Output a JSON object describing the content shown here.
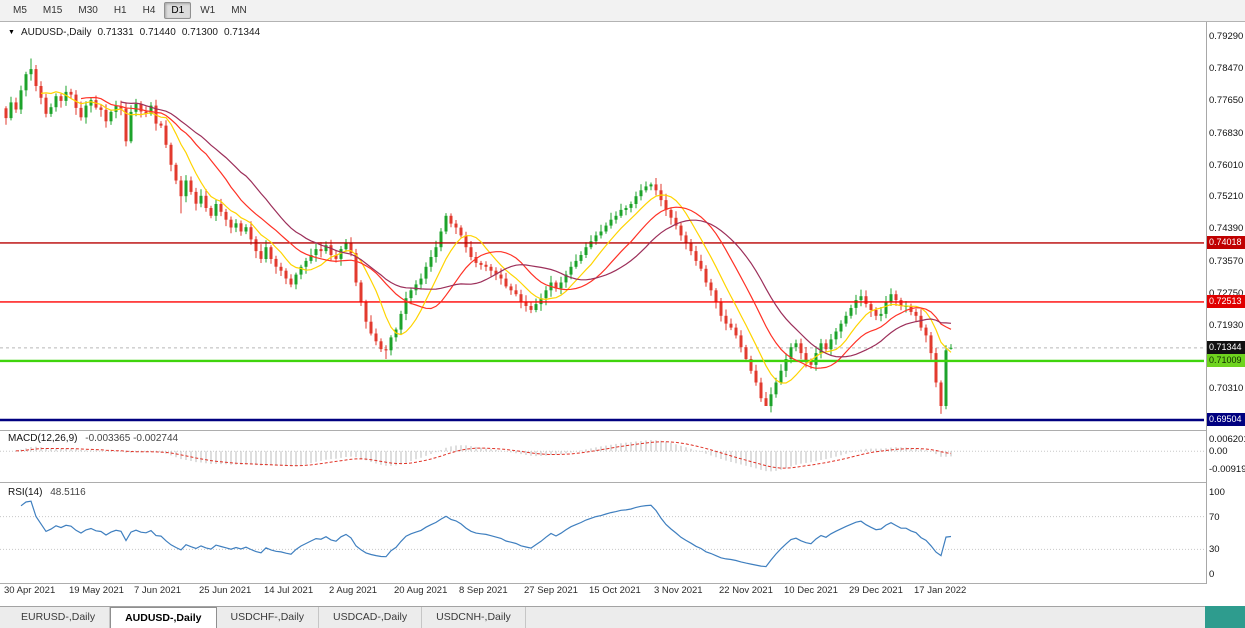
{
  "toolbar": {
    "timeframes": [
      "M5",
      "M15",
      "M30",
      "H1",
      "H4",
      "D1",
      "W1",
      "MN"
    ],
    "active": "D1"
  },
  "chart_header": {
    "marker": "▼",
    "symbol": "AUDUSD-,Daily",
    "open": "0.71331",
    "high": "0.71440",
    "low": "0.71300",
    "close": "0.71344"
  },
  "price_axis_labels": [
    "0.79290",
    "0.78470",
    "0.77650",
    "0.76830",
    "0.76010",
    "0.75210",
    "0.74390",
    "0.73570",
    "0.72750",
    "0.71930",
    "0.70310",
    "0.69490"
  ],
  "indicators": {
    "macd": {
      "name": "MACD(12,26,9)",
      "values": "-0.003365 -0.002744",
      "axis": [
        "0.006201",
        "0.00",
        "-0.009197"
      ]
    },
    "rsi": {
      "name": "RSI(14)",
      "value": "48.5116",
      "axis": [
        "100",
        "70",
        "30",
        "0"
      ],
      "levels": [
        70,
        30
      ]
    }
  },
  "date_axis": [
    "30 Apr 2021",
    "19 May 2021",
    "7 Jun 2021",
    "25 Jun 2021",
    "14 Jul 2021",
    "2 Aug 2021",
    "20 Aug 2021",
    "8 Sep 2021",
    "27 Sep 2021",
    "15 Oct 2021",
    "3 Nov 2021",
    "22 Nov 2021",
    "10 Dec 2021",
    "29 Dec 2021",
    "17 Jan 2022"
  ],
  "tabs": [
    "EURUSD-,Daily",
    "AUDUSD-,Daily",
    "USDCHF-,Daily",
    "USDCAD-,Daily",
    "USDCNH-,Daily"
  ],
  "active_tab": "AUDUSD-,Daily",
  "colors": {
    "bull": "#1da32b",
    "bear": "#e23a2e",
    "ma_fast": "#ffd400",
    "ma_mid": "#ff3226",
    "ma_slow": "#9c2f5a",
    "rsi": "#3f7fbf",
    "macd_signal": "#e03226",
    "macd_hist": "#bdbdbd",
    "separator": "#adadad"
  },
  "chart_data": {
    "type": "candlestick",
    "symbol": "AUDUSD-",
    "timeframe": "Daily",
    "first_open": 0.7745,
    "closes": [
      0.772,
      0.776,
      0.7742,
      0.7791,
      0.7832,
      0.7845,
      0.7802,
      0.7772,
      0.7731,
      0.7748,
      0.7776,
      0.7764,
      0.7787,
      0.778,
      0.7746,
      0.7722,
      0.7752,
      0.7766,
      0.7747,
      0.7741,
      0.7712,
      0.7736,
      0.7751,
      0.7744,
      0.7661,
      0.7736,
      0.7756,
      0.7737,
      0.7731,
      0.7752,
      0.7706,
      0.7701,
      0.7652,
      0.7601,
      0.7561,
      0.7521,
      0.7561,
      0.7532,
      0.7502,
      0.7522,
      0.7491,
      0.7471,
      0.7501,
      0.7481,
      0.7461,
      0.7441,
      0.7452,
      0.7431,
      0.7442,
      0.7411,
      0.7381,
      0.7361,
      0.7391,
      0.7361,
      0.7341,
      0.7331,
      0.7311,
      0.7296,
      0.7321,
      0.7341,
      0.7356,
      0.7371,
      0.7386,
      0.7381,
      0.7396,
      0.7371,
      0.7361,
      0.7386,
      0.7401,
      0.7376,
      0.7301,
      0.7251,
      0.7201,
      0.7171,
      0.7151,
      0.7131,
      0.7128,
      0.7161,
      0.7181,
      0.7221,
      0.7261,
      0.7281,
      0.7296,
      0.7311,
      0.7341,
      0.7366,
      0.7391,
      0.7431,
      0.7471,
      0.7451,
      0.7441,
      0.7421,
      0.7391,
      0.7366,
      0.7351,
      0.7346,
      0.7341,
      0.7331,
      0.7321,
      0.7311,
      0.7291,
      0.7281,
      0.7271,
      0.7251,
      0.7241,
      0.7231,
      0.7246,
      0.7261,
      0.7281,
      0.7301,
      0.7286,
      0.7301,
      0.7321,
      0.7341,
      0.7356,
      0.7371,
      0.7391,
      0.7406,
      0.7421,
      0.7431,
      0.7446,
      0.7461,
      0.7471,
      0.7486,
      0.7491,
      0.7501,
      0.7521,
      0.7536,
      0.7546,
      0.7551,
      0.7536,
      0.7511,
      0.7486,
      0.7466,
      0.7446,
      0.7421,
      0.7401,
      0.7381,
      0.7356,
      0.7336,
      0.7301,
      0.7281,
      0.7251,
      0.7216,
      0.7196,
      0.7186,
      0.7166,
      0.7136,
      0.7106,
      0.7076,
      0.7046,
      0.7006,
      0.6986,
      0.7016,
      0.7046,
      0.7076,
      0.7106,
      0.7136,
      0.7146,
      0.7121,
      0.7101,
      0.7091,
      0.7121,
      0.7146,
      0.7131,
      0.7156,
      0.7176,
      0.7196,
      0.7216,
      0.7236,
      0.7256,
      0.7266,
      0.7246,
      0.7231,
      0.7216,
      0.7221,
      0.7251,
      0.7271,
      0.7256,
      0.7241,
      0.7241,
      0.7226,
      0.7216,
      0.7186,
      0.7166,
      0.7121,
      0.7046,
      0.6986,
      0.7128,
      0.71344
    ],
    "overrides": {
      "5": {
        "h": 0.7872
      },
      "24": {
        "l": 0.7648
      },
      "35": {
        "l": 0.7477
      },
      "57": {
        "l": 0.7289
      },
      "76": {
        "l": 0.7106
      },
      "88": {
        "h": 0.7478
      },
      "129": {
        "h": 0.7556
      },
      "152": {
        "l": 0.6993
      },
      "187": {
        "l": 0.6966
      },
      "189": {
        "o": 0.71331,
        "h": 0.7144,
        "l": 0.713
      }
    },
    "hlines": [
      {
        "value": 0.74018,
        "label": "0.74018",
        "color": "#b80000",
        "width": 1.4,
        "badge": "#c00000",
        "fg": "#ffffff"
      },
      {
        "value": 0.72513,
        "label": "0.72513",
        "color": "#ff0000",
        "width": 1.4,
        "badge": "#e00000",
        "fg": "#ffffff"
      },
      {
        "value": 0.71009,
        "label": "0.71009",
        "color": "#3fd40c",
        "width": 2.4,
        "badge": "#6fd41f",
        "fg": "#102a00"
      },
      {
        "value": 0.69504,
        "label": "0.69504",
        "color": "#000080",
        "width": 2.6,
        "badge": "#000080",
        "fg": "#ffffff"
      }
    ],
    "current_price": {
      "value": 0.71344,
      "label": "0.71344",
      "badge": "#111111",
      "fg": "#ffffff"
    },
    "moving_averages": [
      {
        "period": 8,
        "color": "#ffd400"
      },
      {
        "period": 16,
        "color": "#ff3226"
      },
      {
        "period": 24,
        "color": "#9c2f5a"
      }
    ]
  }
}
